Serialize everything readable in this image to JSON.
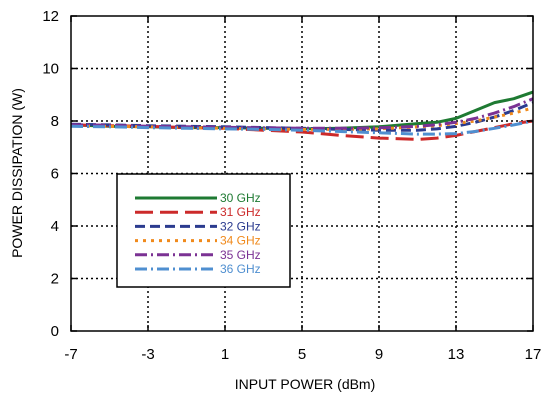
{
  "chart_data": {
    "type": "line",
    "xlabel": "INPUT POWER (dBm)",
    "ylabel": "POWER DISSIPATION (W)",
    "xlim": [
      -7,
      17
    ],
    "ylim": [
      0,
      12
    ],
    "xticks": [
      "-7",
      "-3",
      "1",
      "5",
      "9",
      "13",
      "17"
    ],
    "yticks": [
      "0",
      "2",
      "4",
      "6",
      "8",
      "10",
      "12"
    ],
    "grid": true,
    "legend_position": "lower-left",
    "series": [
      {
        "name": "30 GHz",
        "color": "#1e7a32",
        "dash": "solid",
        "x": [
          -7,
          -5,
          -3,
          -1,
          1,
          3,
          5,
          7,
          9,
          11,
          12,
          13,
          14,
          15,
          16,
          17
        ],
        "y": [
          7.85,
          7.8,
          7.78,
          7.75,
          7.75,
          7.72,
          7.7,
          7.72,
          7.78,
          7.9,
          7.95,
          8.1,
          8.4,
          8.7,
          8.85,
          9.1
        ]
      },
      {
        "name": "31 GHz",
        "color": "#cc2a2a",
        "dash": "long-dash",
        "x": [
          -7,
          -5,
          -3,
          -1,
          1,
          3,
          5,
          7,
          9,
          11,
          12,
          13,
          14,
          15,
          16,
          17
        ],
        "y": [
          7.85,
          7.82,
          7.8,
          7.75,
          7.72,
          7.65,
          7.58,
          7.45,
          7.35,
          7.3,
          7.35,
          7.45,
          7.6,
          7.75,
          7.9,
          8.0
        ]
      },
      {
        "name": "32 GHz",
        "color": "#2b3b8f",
        "dash": "dash",
        "x": [
          -7,
          -5,
          -3,
          -1,
          1,
          3,
          5,
          7,
          9,
          11,
          12,
          13,
          14,
          15,
          16,
          17
        ],
        "y": [
          7.88,
          7.85,
          7.82,
          7.8,
          7.78,
          7.75,
          7.72,
          7.68,
          7.65,
          7.65,
          7.7,
          7.8,
          7.95,
          8.15,
          8.4,
          8.7
        ]
      },
      {
        "name": "34 GHz",
        "color": "#f08a1c",
        "dash": "dot",
        "x": [
          -7,
          -5,
          -3,
          -1,
          1,
          3,
          5,
          7,
          9,
          11,
          12,
          13,
          14,
          15,
          16,
          17
        ],
        "y": [
          7.82,
          7.8,
          7.78,
          7.75,
          7.72,
          7.7,
          7.68,
          7.68,
          7.7,
          7.78,
          7.82,
          7.9,
          8.0,
          8.15,
          8.3,
          8.5
        ]
      },
      {
        "name": "35 GHz",
        "color": "#7b3294",
        "dash": "dash-dot",
        "x": [
          -7,
          -5,
          -3,
          -1,
          1,
          3,
          5,
          7,
          9,
          11,
          12,
          13,
          14,
          15,
          16,
          17
        ],
        "y": [
          7.86,
          7.84,
          7.8,
          7.78,
          7.76,
          7.74,
          7.72,
          7.72,
          7.74,
          7.8,
          7.86,
          7.95,
          8.1,
          8.3,
          8.55,
          8.85
        ]
      },
      {
        "name": "36 GHz",
        "color": "#4f8fd0",
        "dash": "dash-dot",
        "x": [
          -7,
          -5,
          -3,
          -1,
          1,
          3,
          5,
          7,
          9,
          11,
          12,
          13,
          14,
          15,
          16,
          17
        ],
        "y": [
          7.8,
          7.78,
          7.75,
          7.72,
          7.7,
          7.68,
          7.65,
          7.6,
          7.55,
          7.5,
          7.5,
          7.52,
          7.6,
          7.72,
          7.85,
          8.0
        ]
      }
    ]
  }
}
